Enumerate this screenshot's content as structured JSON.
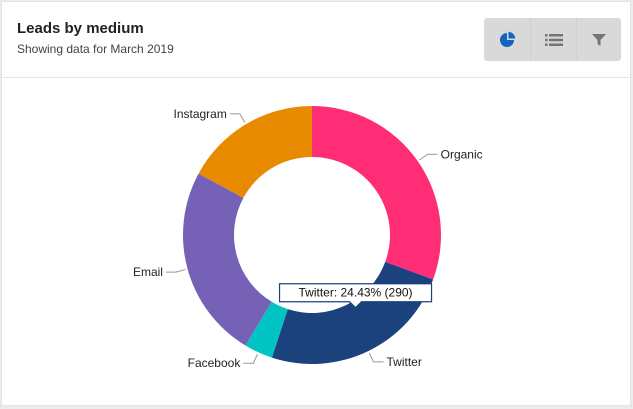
{
  "header": {
    "title": "Leads by medium",
    "subtitle": "Showing data for March 2019"
  },
  "toolbar": {
    "pie_icon": "pie-chart-icon",
    "list_icon": "list-icon",
    "filter_icon": "filter-icon",
    "active_color": "#1565c0",
    "inactive_color": "#757575"
  },
  "chart_data": {
    "type": "pie",
    "donut": true,
    "slices": [
      {
        "label": "Organic",
        "percent": 30.6,
        "color": "#ff2d75"
      },
      {
        "label": "Twitter",
        "percent": 24.43,
        "color": "#1c427e"
      },
      {
        "label": "Facebook",
        "percent": 3.6,
        "color": "#00c4c4"
      },
      {
        "label": "Email",
        "percent": 24.27,
        "color": "#7561b6"
      },
      {
        "label": "Instagram",
        "percent": 17.1,
        "color": "#e88a00"
      }
    ],
    "tooltip": {
      "text": "Twitter: 24.43% (290)",
      "series": "Twitter"
    }
  }
}
